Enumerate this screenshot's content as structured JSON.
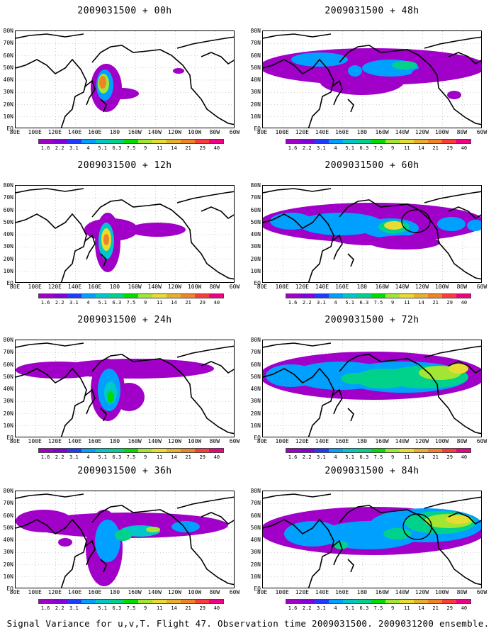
{
  "caption": "Signal Variance for u,v,T. Flight 47. Observation time 2009031500. 2009031200 ensemble.",
  "lat_labels": [
    "80N",
    "70N",
    "60N",
    "50N",
    "40N",
    "30N",
    "20N",
    "10N",
    "EQ"
  ],
  "lon_labels": [
    "80E",
    "100E",
    "120E",
    "140E",
    "160E",
    "180",
    "160W",
    "140W",
    "120W",
    "100W",
    "80W",
    "60W"
  ],
  "colorbar_labels": [
    "1.6",
    "2.2",
    "3.1",
    "4",
    "5.1",
    "6.3",
    "7.5",
    "9",
    "11",
    "14",
    "21",
    "29",
    "40"
  ],
  "colorbar_colors": [
    "#a000c8",
    "#8200dc",
    "#1e3cff",
    "#00a0ff",
    "#00c8c8",
    "#00d28c",
    "#00dc00",
    "#a0e632",
    "#e6dc32",
    "#e6af2d",
    "#f08228",
    "#fa3c3c",
    "#f00082"
  ],
  "panels": [
    {
      "id": "p00",
      "title": "2009031500 + 00h",
      "col": 0,
      "row": 0
    },
    {
      "id": "p12",
      "title": "2009031500 + 12h",
      "col": 0,
      "row": 1
    },
    {
      "id": "p24",
      "title": "2009031500 + 24h",
      "col": 0,
      "row": 2
    },
    {
      "id": "p36",
      "title": "2009031500 + 36h",
      "col": 0,
      "row": 3
    },
    {
      "id": "p48",
      "title": "2009031500 + 48h",
      "col": 1,
      "row": 0
    },
    {
      "id": "p60",
      "title": "2009031500 + 60h",
      "col": 1,
      "row": 1
    },
    {
      "id": "p72",
      "title": "2009031500 + 72h",
      "col": 1,
      "row": 2
    },
    {
      "id": "p84",
      "title": "2009031500 + 84h",
      "col": 1,
      "row": 3
    }
  ]
}
